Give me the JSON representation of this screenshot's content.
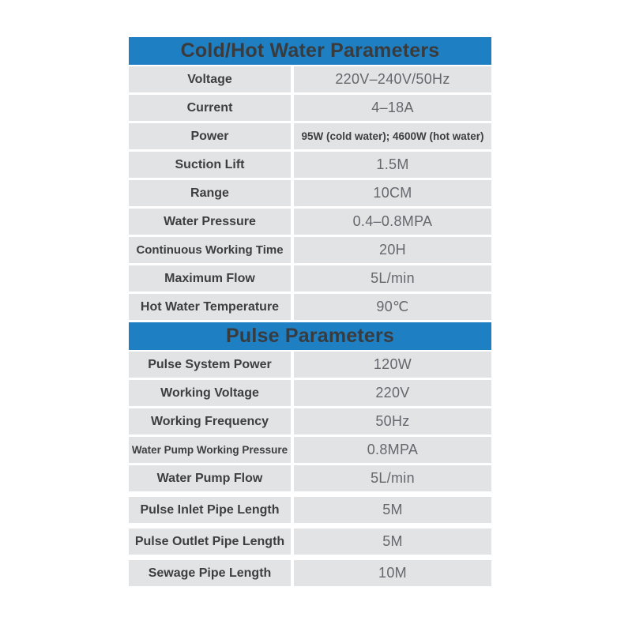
{
  "colors": {
    "header_bg": "#1e7fc3",
    "header_text": "#3a3b3d",
    "cell_bg": "#e2e3e5",
    "label_text": "#3d3e40",
    "value_text": "#64686d",
    "page_bg": "#ffffff"
  },
  "sections": [
    {
      "title": "Cold/Hot Water Parameters",
      "rows": [
        {
          "label": "Voltage",
          "value": "220V–240V/50Hz"
        },
        {
          "label": "Current",
          "value": "4–18A"
        },
        {
          "label": "Power",
          "value": "95W (cold water); 4600W (hot water)"
        },
        {
          "label": "Suction Lift",
          "value": "1.5M"
        },
        {
          "label": "Range",
          "value": "10CM"
        },
        {
          "label": "Water Pressure",
          "value": "0.4–0.8MPA"
        },
        {
          "label": "Continuous Working Time",
          "value": "20H"
        },
        {
          "label": "Maximum Flow",
          "value": "5L/min"
        },
        {
          "label": "Hot Water Temperature",
          "value": "90℃"
        }
      ]
    },
    {
      "title": "Pulse Parameters",
      "rows": [
        {
          "label": "Pulse System Power",
          "value": "120W"
        },
        {
          "label": "Working Voltage",
          "value": "220V"
        },
        {
          "label": "Working Frequency",
          "value": "50Hz"
        },
        {
          "label": "Water Pump Working Pressure",
          "value": "0.8MPA"
        },
        {
          "label": "Water Pump Flow",
          "value": "5L/min"
        },
        {
          "label": "Pulse Inlet Pipe Length",
          "value": "5M"
        },
        {
          "label": "Pulse Outlet Pipe Length",
          "value": "5M"
        },
        {
          "label": "Sewage Pipe Length",
          "value": "10M"
        }
      ]
    }
  ]
}
